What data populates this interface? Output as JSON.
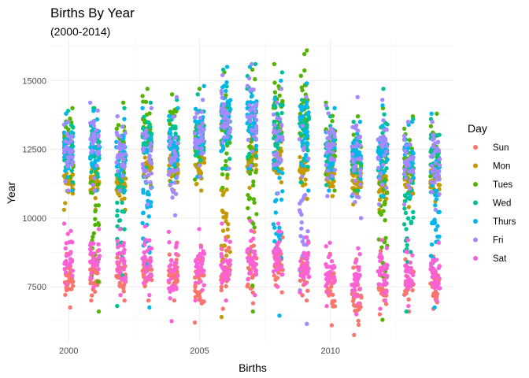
{
  "chart_data": {
    "type": "scatter",
    "title": "Births By Year",
    "subtitle": "(2000-2014)",
    "xlabel": "Births",
    "ylabel": "Year",
    "xlim": [
      1999.3,
      2014.7
    ],
    "ylim": [
      5500,
      16500
    ],
    "x_ticks": [
      2000,
      2005,
      2010
    ],
    "x_tick_labels": [
      "2000",
      "2005",
      "2010"
    ],
    "y_ticks": [
      7500,
      10000,
      12500,
      15000
    ],
    "y_tick_labels": [
      "7500",
      "10000",
      "12500",
      "15000"
    ],
    "grid": true,
    "legend_title": "Day",
    "legend_position": "right",
    "series": [
      {
        "name": "Sun",
        "color": "#F8766D"
      },
      {
        "name": "Mon",
        "color": "#C49A00"
      },
      {
        "name": "Tues",
        "color": "#53B400"
      },
      {
        "name": "Wed",
        "color": "#00C094"
      },
      {
        "name": "Thurs",
        "color": "#00B6EB"
      },
      {
        "name": "Fri",
        "color": "#A58AFF"
      },
      {
        "name": "Sat",
        "color": "#FB61D7"
      }
    ],
    "data_ranges": [
      {
        "x": 2000,
        "Sun": [
          6750,
          8700
        ],
        "Sat": [
          7600,
          9800
        ],
        "Mon": [
          10300,
          12400
        ],
        "Tues": [
          11500,
          14000
        ],
        "Wed": [
          11300,
          13900
        ],
        "Thurs": [
          11000,
          13800
        ],
        "Fri": [
          11000,
          13500
        ]
      },
      {
        "x": 2001,
        "Sun": [
          7000,
          8800
        ],
        "Sat": [
          7500,
          9600
        ],
        "Mon": [
          10300,
          12300
        ],
        "Tues": [
          6600,
          14000
        ],
        "Wed": [
          11500,
          14000
        ],
        "Thurs": [
          11000,
          13900
        ],
        "Fri": [
          11000,
          14200
        ]
      },
      {
        "x": 2002,
        "Sun": [
          7000,
          8700
        ],
        "Sat": [
          7200,
          9600
        ],
        "Mon": [
          10300,
          12200
        ],
        "Tues": [
          11000,
          14200
        ],
        "Wed": [
          6800,
          14000
        ],
        "Thurs": [
          11000,
          13600
        ],
        "Fri": [
          11000,
          13700
        ]
      },
      {
        "x": 2003,
        "Sun": [
          7000,
          8800
        ],
        "Sat": [
          7200,
          9700
        ],
        "Mon": [
          11200,
          12500
        ],
        "Tues": [
          11500,
          14700
        ],
        "Wed": [
          11500,
          14200
        ],
        "Thurs": [
          6750,
          14000
        ],
        "Fri": [
          10500,
          14000
        ]
      },
      {
        "x": 2004,
        "Sun": [
          7000,
          9100
        ],
        "Sat": [
          6250,
          9500
        ],
        "Mon": [
          11000,
          12600
        ],
        "Tues": [
          11200,
          14500
        ],
        "Wed": [
          11300,
          14300
        ],
        "Thurs": [
          11000,
          14000
        ],
        "Fri": [
          10100,
          14400
        ]
      },
      {
        "x": 2005,
        "Sun": [
          6200,
          9000
        ],
        "Sat": [
          7000,
          9600
        ],
        "Mon": [
          11000,
          12700
        ],
        "Tues": [
          11400,
          14700
        ],
        "Wed": [
          11500,
          14500
        ],
        "Thurs": [
          11500,
          14800
        ],
        "Fri": [
          11500,
          14300
        ]
      },
      {
        "x": 2006,
        "Sun": [
          6700,
          9300
        ],
        "Sat": [
          7000,
          9800
        ],
        "Mon": [
          6400,
          13000
        ],
        "Tues": [
          11100,
          15300
        ],
        "Wed": [
          11800,
          15400
        ],
        "Thurs": [
          11800,
          15500
        ],
        "Fri": [
          11800,
          15200
        ]
      },
      {
        "x": 2007,
        "Sun": [
          6900,
          9500
        ],
        "Sat": [
          7200,
          9900
        ],
        "Mon": [
          11100,
          13100
        ],
        "Tues": [
          6600,
          15400
        ],
        "Wed": [
          11800,
          15600
        ],
        "Thurs": [
          11800,
          15500
        ],
        "Fri": [
          11900,
          15600
        ]
      },
      {
        "x": 2008,
        "Sun": [
          7300,
          9300
        ],
        "Sat": [
          7500,
          9800
        ],
        "Mon": [
          11300,
          13200
        ],
        "Tues": [
          11800,
          15600
        ],
        "Wed": [
          11800,
          15300
        ],
        "Thurs": [
          6450,
          15000
        ],
        "Fri": [
          10900,
          14700
        ]
      },
      {
        "x": 2009,
        "Sun": [
          7000,
          9100
        ],
        "Sat": [
          7300,
          9300
        ],
        "Mon": [
          10700,
          12700
        ],
        "Tues": [
          11300,
          16100
        ],
        "Wed": [
          11300,
          14900
        ],
        "Thurs": [
          11000,
          14900
        ],
        "Fri": [
          6150,
          14400
        ]
      },
      {
        "x": 2010,
        "Sun": [
          6100,
          8700
        ],
        "Sat": [
          6800,
          9100
        ],
        "Mon": [
          10800,
          12300
        ],
        "Tues": [
          11000,
          14200
        ],
        "Wed": [
          11200,
          14000
        ],
        "Thurs": [
          11000,
          14000
        ],
        "Fri": [
          10800,
          14100
        ]
      },
      {
        "x": 2011,
        "Sun": [
          5750,
          8500
        ],
        "Sat": [
          6500,
          8900
        ],
        "Mon": [
          10500,
          12100
        ],
        "Tues": [
          11000,
          13700
        ],
        "Wed": [
          11000,
          13500
        ],
        "Thurs": [
          10800,
          13500
        ],
        "Fri": [
          10000,
          14400
        ]
      },
      {
        "x": 2012,
        "Sun": [
          6500,
          8800
        ],
        "Sat": [
          6700,
          9200
        ],
        "Mon": [
          10300,
          12200
        ],
        "Tues": [
          6300,
          14000
        ],
        "Wed": [
          10800,
          14700
        ],
        "Thurs": [
          10800,
          14100
        ],
        "Fri": [
          10500,
          14300
        ]
      },
      {
        "x": 2013,
        "Sun": [
          6600,
          8500
        ],
        "Sat": [
          6800,
          9200
        ],
        "Mon": [
          10400,
          12100
        ],
        "Tues": [
          10800,
          13700
        ],
        "Wed": [
          6600,
          13600
        ],
        "Thurs": [
          10800,
          13500
        ],
        "Fri": [
          10500,
          13500
        ]
      },
      {
        "x": 2014,
        "Sun": [
          6700,
          8600
        ],
        "Sat": [
          7000,
          9100
        ],
        "Mon": [
          10600,
          12200
        ],
        "Tues": [
          11000,
          13800
        ],
        "Wed": [
          11000,
          13600
        ],
        "Thurs": [
          6750,
          13800
        ],
        "Fri": [
          10300,
          13500
        ]
      }
    ]
  }
}
